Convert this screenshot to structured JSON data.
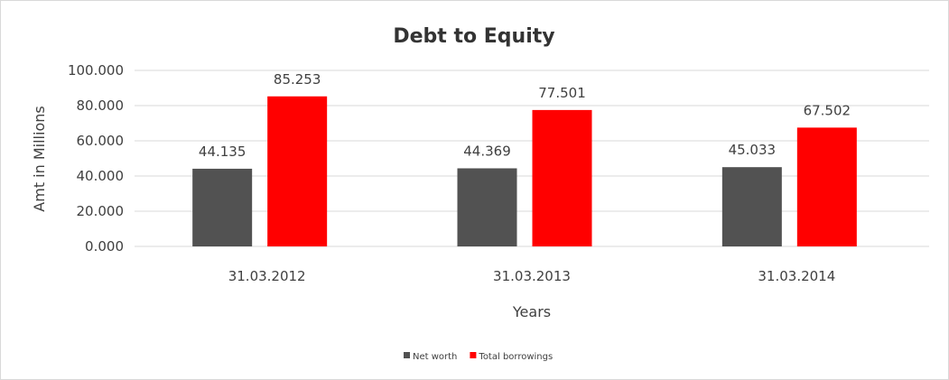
{
  "chart_data": {
    "type": "bar",
    "title": "Debt to Equity",
    "xlabel": "Years",
    "ylabel": "Amt in Millions",
    "categories": [
      "31.03.2012",
      "31.03.2013",
      "31.03.2014"
    ],
    "series": [
      {
        "name": "Net worth",
        "color": "#525252",
        "values": [
          44.135,
          44.369,
          45.033
        ],
        "labels": [
          "44.135",
          "44.369",
          "45.033"
        ]
      },
      {
        "name": "Total borrowings",
        "color": "#ff0000",
        "values": [
          85.253,
          77.501,
          67.502
        ],
        "labels": [
          "85.253",
          "77.501",
          "67.502"
        ]
      }
    ],
    "ylim": [
      0,
      100
    ],
    "yticks": [
      0,
      20,
      40,
      60,
      80,
      100
    ],
    "ytick_labels": [
      "0.000",
      "20.000",
      "40.000",
      "60.000",
      "80.000",
      "100.000"
    ],
    "grid": true,
    "legend_position": "bottom"
  }
}
